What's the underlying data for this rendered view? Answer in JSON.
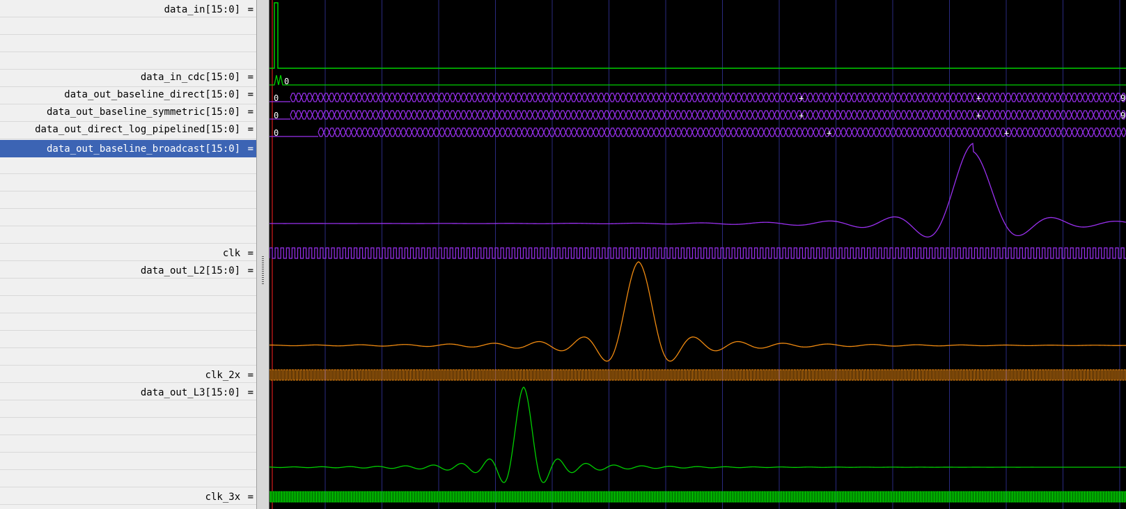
{
  "signals": [
    {
      "id": "data_in",
      "name": "data_in[15:0]",
      "suffix": " =",
      "selected": false
    },
    {
      "id": "data_in_cdc",
      "name": "data_in_cdc[15:0]",
      "suffix": " =",
      "selected": false
    },
    {
      "id": "data_out_baseline_direct",
      "name": "data_out_baseline_direct[15:0]",
      "suffix": " =",
      "selected": false
    },
    {
      "id": "data_out_baseline_symmetric",
      "name": "data_out_baseline_symmetric[15:0]",
      "suffix": " =",
      "selected": false
    },
    {
      "id": "data_out_direct_log_pipelined",
      "name": "data_out_direct_log_pipelined[15:0]",
      "suffix": " =",
      "selected": false
    },
    {
      "id": "data_out_baseline_broadcast",
      "name": "data_out_baseline_broadcast[15:0]",
      "suffix": " =",
      "selected": true
    },
    {
      "id": "clk",
      "name": "clk",
      "suffix": " =",
      "selected": false
    },
    {
      "id": "data_out_L2",
      "name": "data_out_L2[15:0]",
      "suffix": " =",
      "selected": false
    },
    {
      "id": "clk_2x",
      "name": "clk_2x",
      "suffix": " =",
      "selected": false
    },
    {
      "id": "data_out_L3",
      "name": "data_out_L3[15:0]",
      "suffix": " =",
      "selected": false
    },
    {
      "id": "clk_3x",
      "name": "clk_3x",
      "suffix": " =",
      "selected": false
    }
  ],
  "value_labels": {
    "data_in_cdc_start": "0",
    "bus_start": "0",
    "bus_mid": "+",
    "bus_end": "9"
  },
  "colors": {
    "background": "#000000",
    "grid": "#2a2a80",
    "green": "#00d000",
    "purple": "#9a30f0",
    "orange": "#f08a10",
    "cursor": "#ff2020",
    "selection": "#3c64b4"
  }
}
